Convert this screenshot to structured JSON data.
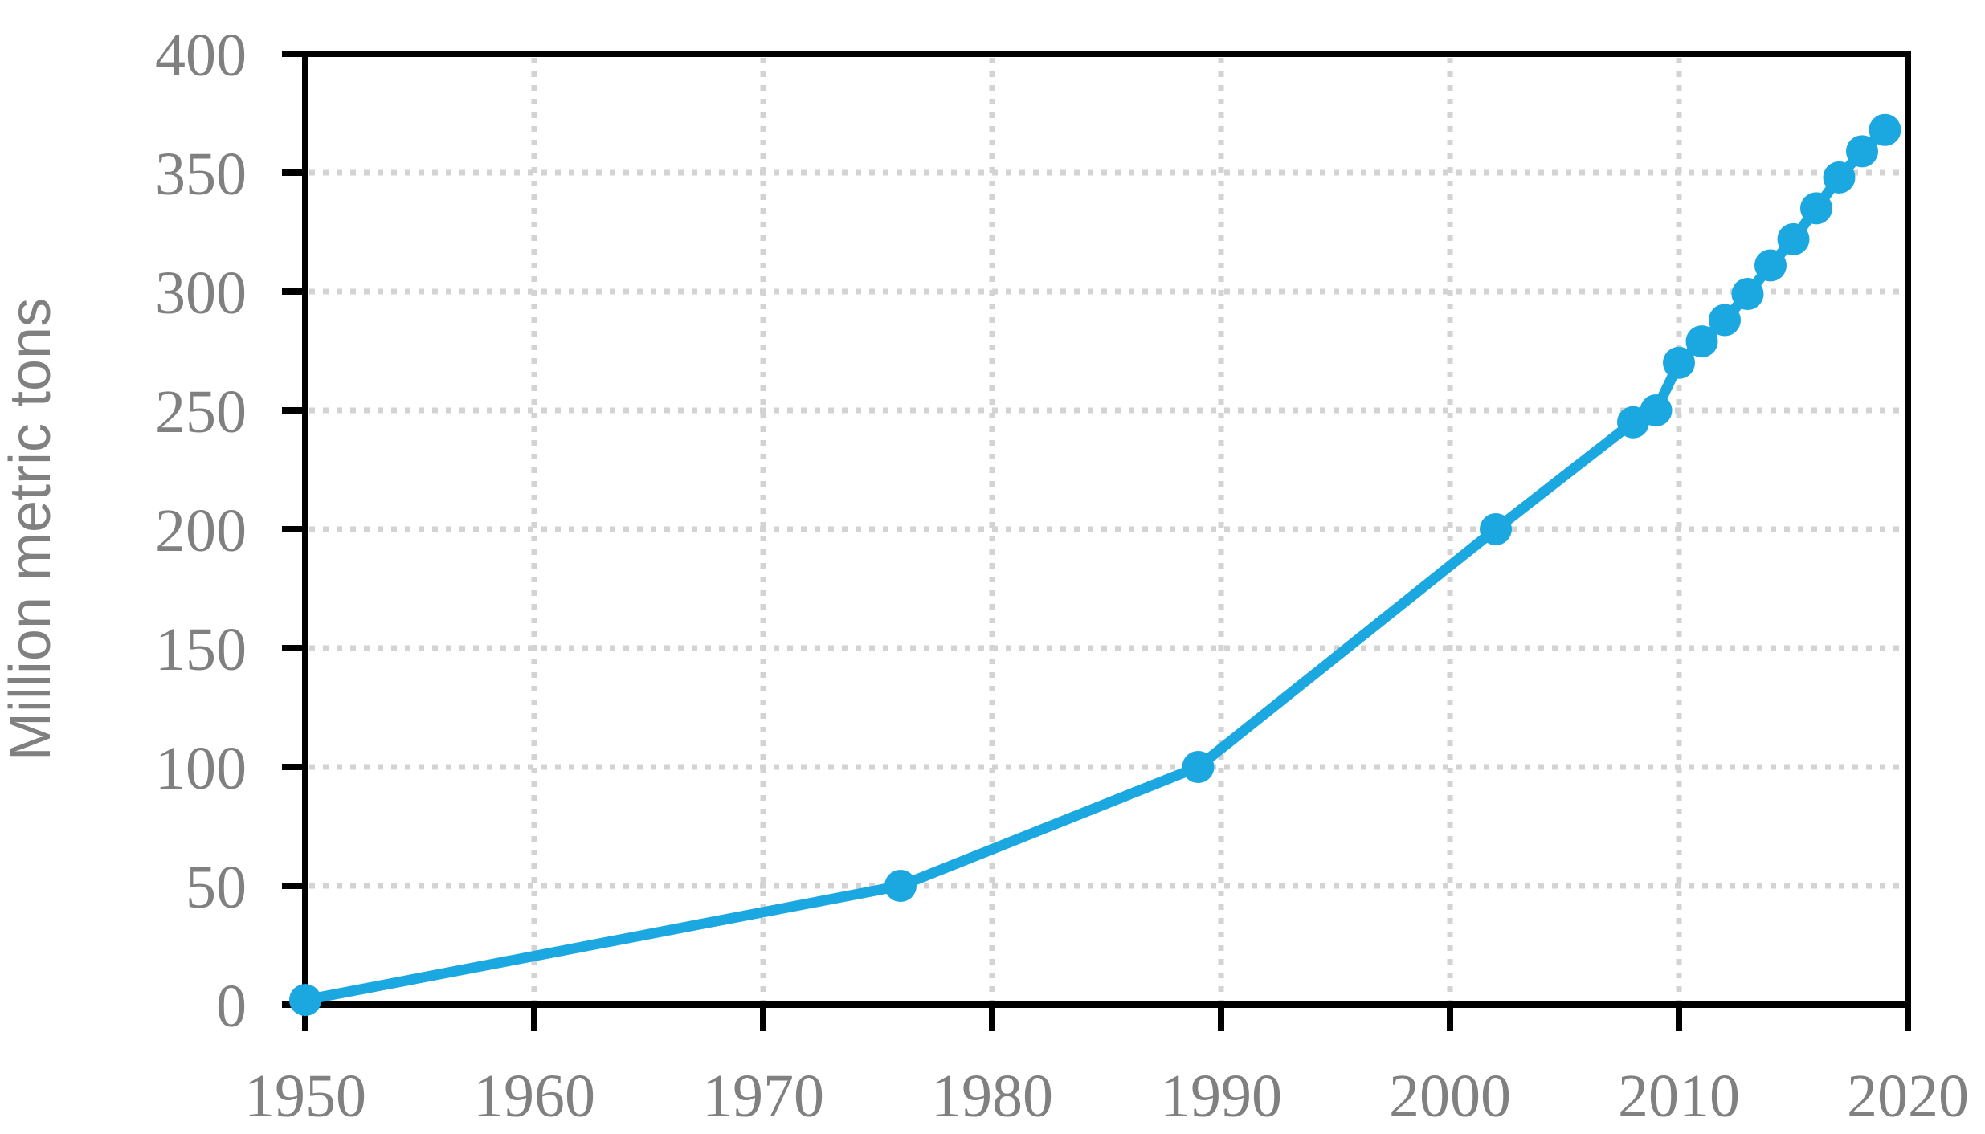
{
  "chart_data": {
    "type": "line",
    "title": "",
    "xlabel": "",
    "ylabel": "Million metric tons",
    "x": [
      1950,
      1976,
      1989,
      2002,
      2008,
      2009,
      2010,
      2011,
      2012,
      2013,
      2014,
      2015,
      2016,
      2017,
      2018,
      2019
    ],
    "values": [
      2,
      50,
      100,
      200,
      245,
      250,
      270,
      279,
      288,
      299,
      311,
      322,
      335,
      348,
      359,
      368
    ],
    "xlim": [
      1950,
      2020
    ],
    "ylim": [
      0,
      400
    ],
    "xticks": [
      1950,
      1960,
      1970,
      1980,
      1990,
      2000,
      2010,
      2020
    ],
    "yticks": [
      0,
      50,
      100,
      150,
      200,
      250,
      300,
      350,
      400
    ],
    "grid": "dotted",
    "legend": "none",
    "marker": "circle",
    "colors": {
      "line": "#1BA8E1",
      "tick_labels": "#808080",
      "axis_title": "#808080",
      "axis": "#000000",
      "grid": "#D3D3D3",
      "background": "#FFFFFF"
    }
  }
}
